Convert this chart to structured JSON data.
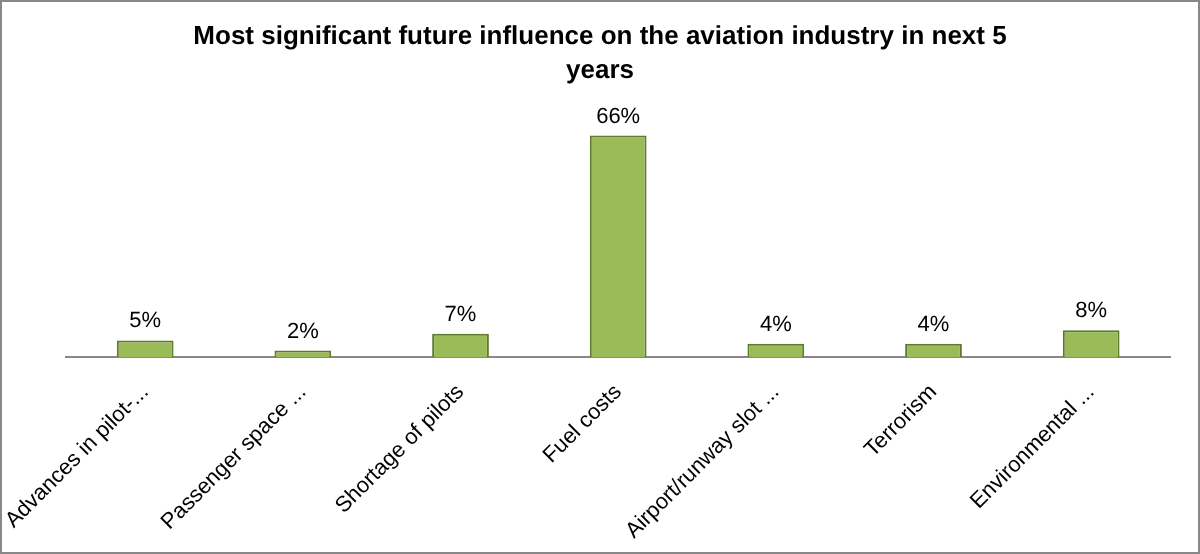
{
  "chart_data": {
    "type": "bar",
    "title": "Most significant future influence on the aviation industry in next 5 years",
    "categories": [
      "Advances in pilot-...",
      "Passenger space ...",
      "Shortage of pilots",
      "Fuel costs",
      "Airport/runway slot ...",
      "Terrorism",
      "Environmental ..."
    ],
    "values": [
      5,
      2,
      7,
      66,
      4,
      4,
      8
    ],
    "value_labels": [
      "5%",
      "2%",
      "7%",
      "66%",
      "4%",
      "4%",
      "8%"
    ],
    "color": "#9bbb59",
    "tick_labels": "x",
    "grid": false,
    "legend": false
  }
}
